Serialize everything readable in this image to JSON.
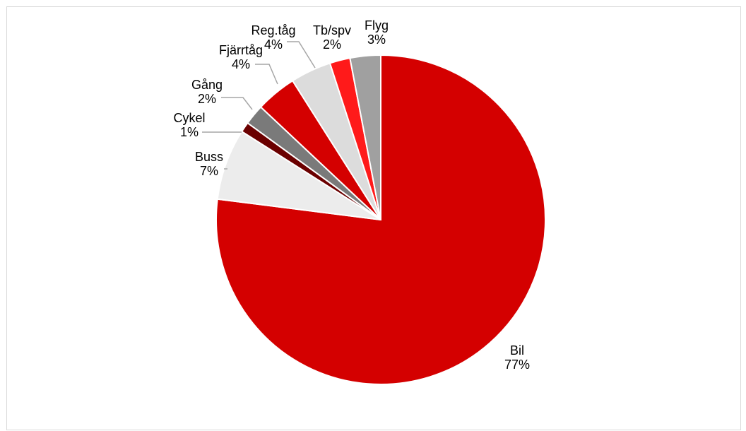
{
  "chart_data": {
    "type": "pie",
    "title": "",
    "start_angle_deg": 0,
    "direction": "clockwise",
    "slices": [
      {
        "label": "Bil",
        "value": 77,
        "display": "77%",
        "color": "#d40000"
      },
      {
        "label": "Buss",
        "value": 7,
        "display": "7%",
        "color": "#ececec"
      },
      {
        "label": "Cykel",
        "value": 1,
        "display": "1%",
        "color": "#6b0000"
      },
      {
        "label": "Gång",
        "value": 2,
        "display": "2%",
        "color": "#7a7a7a"
      },
      {
        "label": "Fjärrtåg",
        "value": 4,
        "display": "4%",
        "color": "#d40000"
      },
      {
        "label": "Reg.tåg",
        "value": 4,
        "display": "4%",
        "color": "#dcdcdc"
      },
      {
        "label": "Tb/spv",
        "value": 2,
        "display": "2%",
        "color": "#ff1a1a"
      },
      {
        "label": "Flyg",
        "value": 3,
        "display": "3%",
        "color": "#a0a0a0"
      }
    ],
    "legend": "none"
  }
}
